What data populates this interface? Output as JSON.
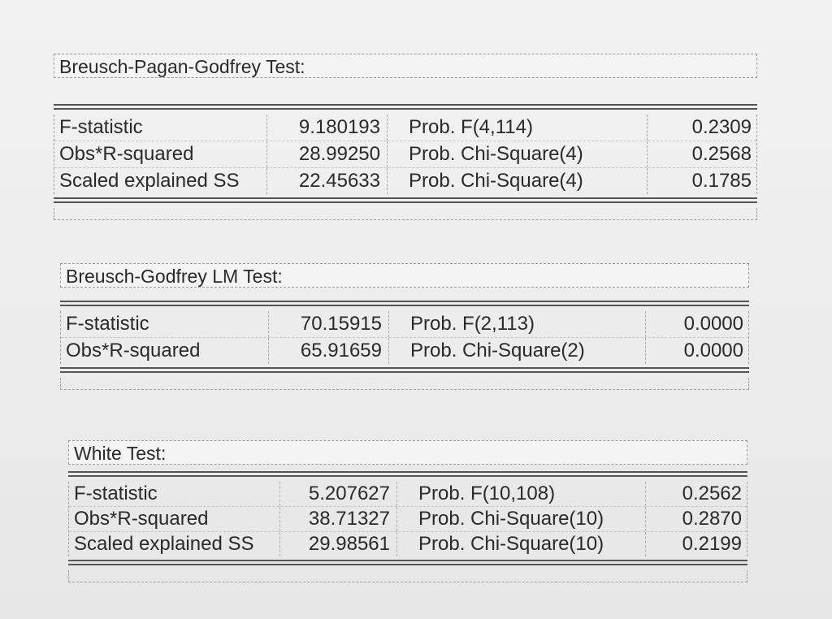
{
  "tests": [
    {
      "title": "Breusch-Pagan-Godfrey Test:",
      "rows": [
        {
          "label": "F-statistic",
          "value": "9.180193",
          "prob_label": "Prob. F(4,114)",
          "prob": "0.2309"
        },
        {
          "label": "Obs*R-squared",
          "value": "28.99250",
          "prob_label": "Prob. Chi-Square(4)",
          "prob": "0.2568"
        },
        {
          "label": "Scaled explained SS",
          "value": "22.45633",
          "prob_label": "Prob. Chi-Square(4)",
          "prob": "0.1785"
        }
      ]
    },
    {
      "title": "Breusch-Godfrey LM Test:",
      "rows": [
        {
          "label": "F-statistic",
          "value": "70.15915",
          "prob_label": "Prob. F(2,113)",
          "prob": "0.0000"
        },
        {
          "label": "Obs*R-squared",
          "value": "65.91659",
          "prob_label": "Prob. Chi-Square(2)",
          "prob": "0.0000"
        }
      ]
    },
    {
      "title": "White Test:",
      "rows": [
        {
          "label": "F-statistic",
          "value": "5.207627",
          "prob_label": "Prob. F(10,108)",
          "prob": "0.2562"
        },
        {
          "label": "Obs*R-squared",
          "value": "38.71327",
          "prob_label": "Prob. Chi-Square(10)",
          "prob": "0.2870"
        },
        {
          "label": "Scaled explained SS",
          "value": "29.98561",
          "prob_label": "Prob. Chi-Square(10)",
          "prob": "0.2199"
        }
      ]
    }
  ]
}
